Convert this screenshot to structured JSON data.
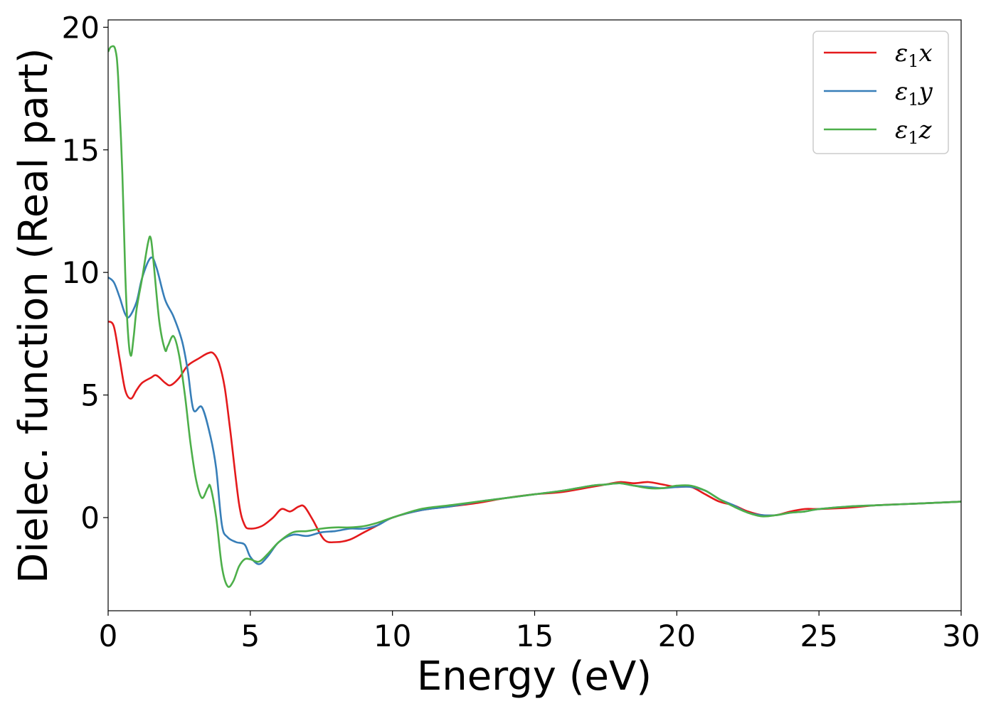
{
  "chart_data": {
    "type": "line",
    "title": "",
    "xlabel": "Energy (eV)",
    "ylabel": "Dielec. function (Real part)",
    "xlim": [
      0,
      30
    ],
    "ylim": [
      -3.8,
      20.3
    ],
    "xticks": [
      0,
      5,
      10,
      15,
      20,
      25,
      30
    ],
    "yticks": [
      0,
      5,
      10,
      15,
      20
    ],
    "grid": false,
    "legend_position": "top-right",
    "series": [
      {
        "name": "ε1x",
        "symbol": "ε",
        "sub": "1",
        "axis": "x",
        "color": "#e41a1c",
        "x": [
          0,
          0.2,
          0.4,
          0.6,
          0.8,
          1.0,
          1.2,
          1.5,
          1.7,
          2.0,
          2.2,
          2.5,
          2.8,
          3.2,
          3.5,
          3.7,
          3.9,
          4.1,
          4.3,
          4.6,
          4.8,
          5.0,
          5.4,
          5.8,
          6.1,
          6.4,
          6.7,
          6.9,
          7.2,
          7.6,
          8.0,
          8.5,
          9.0,
          9.5,
          10.0,
          11.0,
          12.0,
          13.0,
          14.0,
          15.0,
          16.0,
          17.0,
          17.5,
          18.0,
          18.5,
          19.0,
          19.5,
          20.0,
          20.5,
          21.0,
          21.5,
          22.0,
          22.5,
          23.0,
          23.5,
          24.0,
          24.5,
          25.0,
          26.0,
          27.0,
          28.0,
          29.0,
          30.0
        ],
        "y": [
          8.0,
          7.8,
          6.5,
          5.2,
          4.85,
          5.2,
          5.5,
          5.7,
          5.8,
          5.5,
          5.4,
          5.7,
          6.2,
          6.5,
          6.7,
          6.7,
          6.3,
          5.3,
          3.5,
          0.6,
          -0.3,
          -0.45,
          -0.35,
          0.0,
          0.35,
          0.25,
          0.45,
          0.45,
          -0.1,
          -0.9,
          -1.0,
          -0.9,
          -0.6,
          -0.3,
          0.0,
          0.3,
          0.45,
          0.6,
          0.8,
          0.95,
          1.05,
          1.25,
          1.35,
          1.45,
          1.4,
          1.45,
          1.35,
          1.25,
          1.25,
          0.95,
          0.65,
          0.5,
          0.25,
          0.1,
          0.1,
          0.25,
          0.35,
          0.35,
          0.4,
          0.5,
          0.55,
          0.6,
          0.65
        ]
      },
      {
        "name": "ε1y",
        "symbol": "ε",
        "sub": "1",
        "axis": "y",
        "color": "#377eb8",
        "x": [
          0,
          0.2,
          0.4,
          0.6,
          0.75,
          1.0,
          1.2,
          1.5,
          1.7,
          2.0,
          2.3,
          2.6,
          2.8,
          3.0,
          3.3,
          3.6,
          3.8,
          4.0,
          4.2,
          4.5,
          4.8,
          5.0,
          5.3,
          5.6,
          6.0,
          6.5,
          7.0,
          7.5,
          8.0,
          8.5,
          9.0,
          9.5,
          10.0,
          11.0,
          12.0,
          13.0,
          14.0,
          15.0,
          16.0,
          17.0,
          17.5,
          18.0,
          18.5,
          19.0,
          19.5,
          20.0,
          20.5,
          21.0,
          21.5,
          22.0,
          22.5,
          23.0,
          23.5,
          24.0,
          24.5,
          25.0,
          26.0,
          27.0,
          28.0,
          29.0,
          30.0
        ],
        "y": [
          9.8,
          9.6,
          9.0,
          8.3,
          8.2,
          8.8,
          9.8,
          10.6,
          10.2,
          8.9,
          8.2,
          7.2,
          6.0,
          4.4,
          4.5,
          3.3,
          2.0,
          -0.3,
          -0.8,
          -1.0,
          -1.1,
          -1.6,
          -1.9,
          -1.6,
          -1.0,
          -0.7,
          -0.75,
          -0.6,
          -0.55,
          -0.45,
          -0.45,
          -0.3,
          0.0,
          0.3,
          0.45,
          0.65,
          0.8,
          0.95,
          1.1,
          1.3,
          1.35,
          1.4,
          1.3,
          1.25,
          1.2,
          1.25,
          1.25,
          1.1,
          0.75,
          0.5,
          0.2,
          0.1,
          0.1,
          0.2,
          0.25,
          0.35,
          0.45,
          0.5,
          0.55,
          0.6,
          0.65
        ]
      },
      {
        "name": "ε1z",
        "symbol": "ε",
        "sub": "1",
        "axis": "z",
        "color": "#4daf4a",
        "x": [
          0,
          0.1,
          0.25,
          0.35,
          0.5,
          0.6,
          0.7,
          0.8,
          0.9,
          1.0,
          1.2,
          1.4,
          1.5,
          1.6,
          1.8,
          2.0,
          2.1,
          2.3,
          2.5,
          2.7,
          2.9,
          3.1,
          3.3,
          3.5,
          3.6,
          3.8,
          4.0,
          4.2,
          4.4,
          4.6,
          4.8,
          5.0,
          5.3,
          5.6,
          6.0,
          6.5,
          7.0,
          7.5,
          8.0,
          8.5,
          9.0,
          9.5,
          10.0,
          11.0,
          12.0,
          13.0,
          14.0,
          15.0,
          16.0,
          17.0,
          17.5,
          18.0,
          18.5,
          19.0,
          19.5,
          20.0,
          20.5,
          21.0,
          21.5,
          22.0,
          22.5,
          23.0,
          23.5,
          24.0,
          24.5,
          25.0,
          26.0,
          27.0,
          28.0,
          29.0,
          30.0
        ],
        "y": [
          19.0,
          19.2,
          19.1,
          18.0,
          14.0,
          10.0,
          7.5,
          6.6,
          7.4,
          8.5,
          9.8,
          11.2,
          11.4,
          10.4,
          8.0,
          6.85,
          7.0,
          7.4,
          6.6,
          5.0,
          3.0,
          1.5,
          0.8,
          1.2,
          1.25,
          0.0,
          -2.0,
          -2.8,
          -2.6,
          -2.0,
          -1.7,
          -1.7,
          -1.8,
          -1.5,
          -1.0,
          -0.6,
          -0.55,
          -0.45,
          -0.4,
          -0.4,
          -0.35,
          -0.2,
          0.0,
          0.35,
          0.5,
          0.65,
          0.8,
          0.95,
          1.1,
          1.3,
          1.35,
          1.4,
          1.3,
          1.2,
          1.2,
          1.3,
          1.3,
          1.1,
          0.75,
          0.45,
          0.2,
          0.05,
          0.1,
          0.2,
          0.25,
          0.35,
          0.45,
          0.5,
          0.55,
          0.6,
          0.65
        ]
      }
    ]
  }
}
